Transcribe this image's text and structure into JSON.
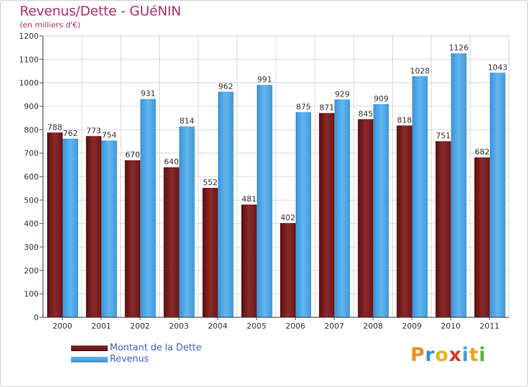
{
  "title": "Revenus/Dette - GUéNIN",
  "subtitle": "(en milliers d'€)",
  "legend": [
    {
      "label": "Montant de la Dette",
      "color": "#7a1c1c"
    },
    {
      "label": "Revenus",
      "color": "#4ca6e6"
    }
  ],
  "logo": {
    "text": "Proxiti",
    "letters": [
      {
        "ch": "P",
        "color": "#f08a1c"
      },
      {
        "ch": "r",
        "color": "#3a8ee0"
      },
      {
        "ch": "o",
        "color": "#e8b020"
      },
      {
        "ch": "x",
        "color": "#d03a2a"
      },
      {
        "ch": "i",
        "color": "#3aa0e0"
      },
      {
        "ch": "t",
        "color": "#f0a020"
      },
      {
        "ch": "i",
        "color": "#5ab03a"
      }
    ]
  },
  "chart_data": {
    "type": "bar",
    "categories": [
      "2000",
      "2001",
      "2002",
      "2003",
      "2004",
      "2005",
      "2006",
      "2007",
      "2008",
      "2009",
      "2010",
      "2011"
    ],
    "series": [
      {
        "name": "Montant de la Dette",
        "color": "#7a1c1c",
        "values": [
          788,
          773,
          670,
          640,
          552,
          481,
          402,
          871,
          845,
          818,
          751,
          682
        ]
      },
      {
        "name": "Revenus",
        "color": "#4ca6e6",
        "values": [
          762,
          754,
          931,
          814,
          962,
          991,
          875,
          929,
          909,
          1028,
          1126,
          1043
        ]
      }
    ],
    "ylim": [
      0,
      1200
    ],
    "yticks": [
      0,
      100,
      200,
      300,
      400,
      500,
      600,
      700,
      800,
      900,
      1000,
      1100,
      1200
    ],
    "grid": true,
    "legend_position": "bottom-left"
  }
}
